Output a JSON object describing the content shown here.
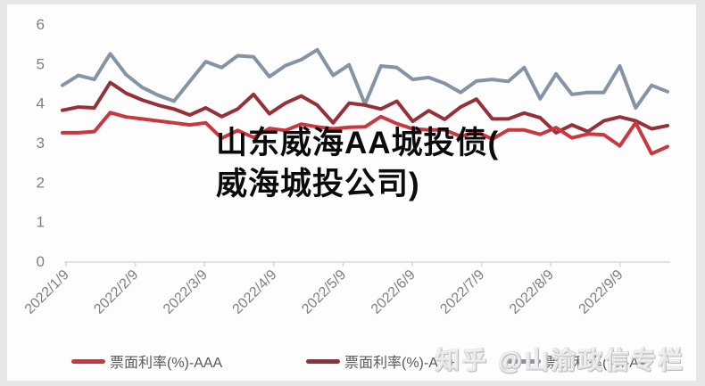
{
  "page": {
    "background": "#e7e7e7",
    "panel_background": "#fdfdfd",
    "axis_line_color": "#d9d9d9",
    "axis_label_color": "#7f7f7f",
    "legend_text_color": "#595959"
  },
  "title_overlay": {
    "line1": "山东威海AA城投债(",
    "line2": "威海城投公司)"
  },
  "watermark": {
    "text": "知乎 @山渝政信专栏"
  },
  "legend": {
    "items": [
      {
        "label": "票面利率(%)-AAA",
        "color": "#c9373f"
      },
      {
        "label": "票面利率(%)-AA+",
        "color": "#963038"
      },
      {
        "label": "票面利率(%)-AA",
        "color": "#8494a6"
      }
    ]
  },
  "chart_data": {
    "type": "line",
    "title": "",
    "xlabel": "",
    "ylabel": "",
    "ylim": [
      0,
      6
    ],
    "y_ticks": [
      0,
      1,
      2,
      3,
      4,
      5,
      6
    ],
    "x_tick_labels": [
      "2022/1/9",
      "2022/2/9",
      "2022/3/9",
      "2022/4/9",
      "2022/5/9",
      "2022/6/9",
      "2022/7/9",
      "2022/8/9",
      "2022/9/9"
    ],
    "grid": false,
    "legend_position": "bottom",
    "series": [
      {
        "name": "票面利率(%)-AAA",
        "color": "#c9373f",
        "values": [
          3.25,
          3.25,
          3.28,
          3.76,
          3.65,
          3.6,
          3.55,
          3.5,
          3.45,
          3.5,
          3.11,
          3.31,
          3.13,
          3.36,
          3.31,
          3.47,
          3.4,
          3.35,
          3.39,
          3.4,
          3.66,
          3.48,
          3.35,
          3.32,
          3.32,
          3.16,
          3.27,
          3.09,
          3.32,
          3.32,
          3.21,
          3.38,
          3.12,
          3.22,
          3.2,
          2.92,
          3.5,
          2.72,
          2.9
        ]
      },
      {
        "name": "票面利率(%)-AA+",
        "color": "#963038",
        "values": [
          3.82,
          3.9,
          3.88,
          4.52,
          4.25,
          4.08,
          3.95,
          3.85,
          3.7,
          3.88,
          3.66,
          3.85,
          4.22,
          3.73,
          4.0,
          4.18,
          3.95,
          3.5,
          4.0,
          3.95,
          3.85,
          4.05,
          3.54,
          3.81,
          3.59,
          3.9,
          4.1,
          3.6,
          3.6,
          3.75,
          3.63,
          3.25,
          3.45,
          3.28,
          3.55,
          3.65,
          3.55,
          3.35,
          3.43
        ]
      },
      {
        "name": "票面利率(%)-AA",
        "color": "#8494a6",
        "values": [
          4.45,
          4.7,
          4.6,
          5.25,
          4.72,
          4.4,
          4.2,
          4.05,
          4.55,
          5.05,
          4.9,
          5.2,
          5.17,
          4.67,
          4.95,
          5.1,
          5.35,
          4.7,
          4.97,
          3.97,
          4.94,
          4.9,
          4.6,
          4.65,
          4.5,
          4.27,
          4.56,
          4.6,
          4.55,
          4.9,
          4.11,
          4.74,
          4.22,
          4.27,
          4.27,
          4.94,
          3.88,
          4.45,
          4.29
        ]
      }
    ]
  }
}
